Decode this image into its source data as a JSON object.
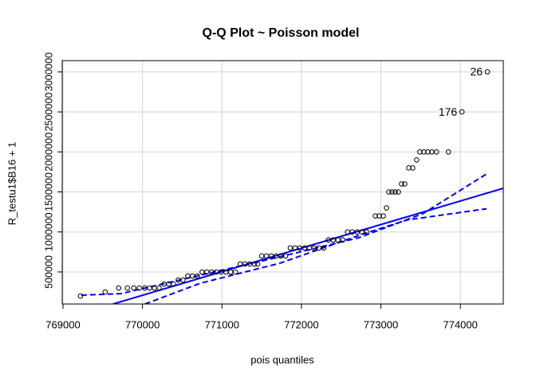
{
  "chart_data": {
    "type": "scatter",
    "title": "Q-Q Plot ~ Poisson model",
    "xlabel": "pois quantiles",
    "ylabel": "R_testu1$B16 + 1",
    "x": [
      769220,
      769530,
      769700,
      769810,
      769890,
      769960,
      770030,
      770090,
      770150,
      770210,
      770270,
      770330,
      770390,
      770450,
      770510,
      770570,
      770630,
      770690,
      770750,
      770810,
      770870,
      770930,
      770990,
      771050,
      771110,
      771170,
      771230,
      771290,
      771350,
      771410,
      771450,
      771500,
      771560,
      771620,
      771680,
      771740,
      771800,
      771860,
      771920,
      771980,
      772040,
      772100,
      772160,
      772220,
      772280,
      772340,
      772400,
      772460,
      772520,
      772580,
      772640,
      772700,
      772760,
      772820,
      772930,
      772980,
      773030,
      773070,
      773100,
      773140,
      773180,
      773220,
      773260,
      773300,
      773350,
      773400,
      773450,
      773490,
      773540,
      773590,
      773640,
      773700,
      773850,
      774020,
      774340
    ],
    "values": [
      200000,
      250000,
      300000,
      300000,
      300000,
      300000,
      300000,
      300000,
      300000,
      300000,
      350000,
      350000,
      350000,
      400000,
      400000,
      450000,
      450000,
      450000,
      500000,
      500000,
      500000,
      500000,
      500000,
      500000,
      500000,
      500000,
      600000,
      600000,
      600000,
      600000,
      600000,
      700000,
      700000,
      700000,
      700000,
      700000,
      700000,
      800000,
      800000,
      800000,
      800000,
      800000,
      800000,
      800000,
      800000,
      900000,
      900000,
      900000,
      900000,
      1000000,
      1000000,
      1000000,
      1000000,
      1000000,
      1200000,
      1200000,
      1200000,
      1300000,
      1500000,
      1500000,
      1500000,
      1500000,
      1600000,
      1600000,
      1800000,
      1800000,
      1900000,
      2000000,
      2000000,
      2000000,
      2000000,
      2000000,
      2000000,
      2500000,
      3000000
    ],
    "point_labels": [
      null,
      null,
      null,
      null,
      null,
      null,
      null,
      null,
      null,
      null,
      null,
      null,
      null,
      null,
      null,
      null,
      null,
      null,
      null,
      null,
      null,
      null,
      null,
      null,
      null,
      null,
      null,
      null,
      null,
      null,
      null,
      null,
      null,
      null,
      null,
      null,
      null,
      null,
      null,
      null,
      null,
      null,
      null,
      null,
      null,
      null,
      null,
      null,
      null,
      null,
      null,
      null,
      null,
      null,
      null,
      null,
      null,
      null,
      null,
      null,
      null,
      null,
      null,
      null,
      null,
      null,
      null,
      null,
      null,
      null,
      null,
      null,
      null,
      "176",
      "26"
    ],
    "color": "#000000",
    "lines": [
      {
        "style": "solid",
        "color": "#0000ff",
        "x": [
          769630,
          774540
        ],
        "values": [
          100000,
          1546000
        ]
      },
      {
        "style": "dashed",
        "color": "#0000ff",
        "x": [
          769230,
          769730,
          770730,
          771730,
          772730,
          773530,
          774330
        ],
        "values": [
          210000,
          230000,
          460000,
          690000,
          930000,
          1230000,
          1725000
        ]
      },
      {
        "style": "dashed",
        "color": "#0000ff",
        "x": [
          770030,
          770730,
          771730,
          772730,
          773330,
          774330
        ],
        "values": [
          100000,
          360000,
          610000,
          960000,
          1150000,
          1290000
        ]
      }
    ],
    "xlim": [
      768990,
      774540
    ],
    "ylim": [
      100000,
      3140000
    ],
    "xticks": [
      769000,
      770000,
      771000,
      772000,
      773000,
      774000
    ],
    "yticks": [
      500000,
      1000000,
      1500000,
      2000000,
      2500000,
      3000000
    ],
    "grid": true
  }
}
